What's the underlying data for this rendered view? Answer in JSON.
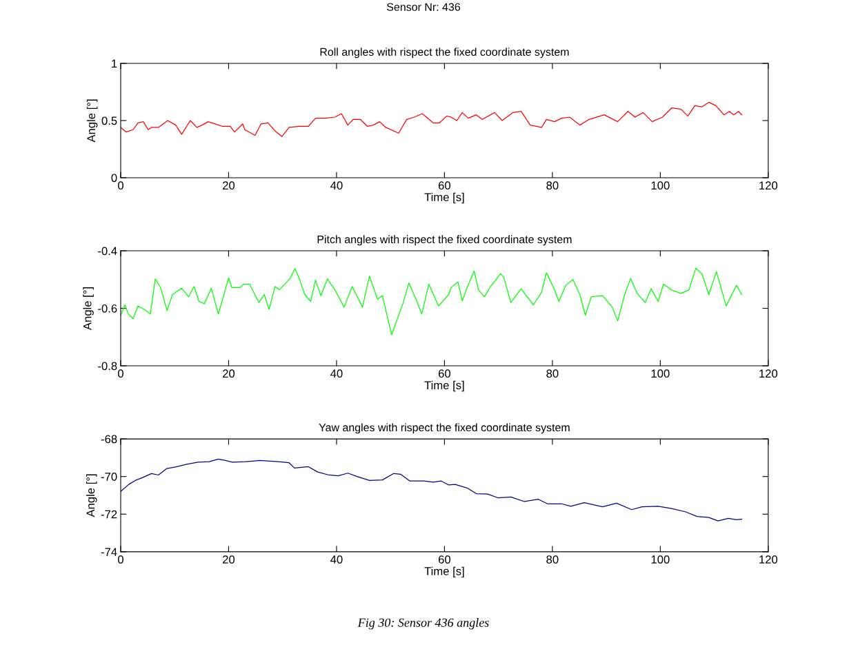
{
  "chart_data": [
    {
      "type": "line",
      "title": "Roll angles with rispect the fixed coordinate system",
      "xlabel": "Time [s]",
      "ylabel": "Angle [°]",
      "annotations": [
        "Sensor Nr: 436"
      ],
      "xlim": [
        0,
        120
      ],
      "xticks": [
        0,
        20,
        40,
        60,
        80,
        100,
        120
      ],
      "ylim": [
        0,
        1
      ],
      "yticks": [
        0,
        0.5,
        1
      ],
      "grid": false,
      "legend": false,
      "marker": "none",
      "line_style": "solid",
      "series": [
        {
          "color": "#ff0000",
          "x": [
            0,
            1.0,
            2.3,
            3.2,
            4.2,
            5.1,
            5.7,
            7.0,
            8.7,
            10.2,
            11.3,
            12.9,
            14.1,
            15.1,
            16.2,
            17.5,
            18.8,
            20.3,
            21.1,
            22.6,
            23.0,
            24.9,
            26.0,
            27.3,
            28.8,
            29.9,
            31.2,
            33.1,
            34.8,
            36.1,
            37.8,
            39.7,
            40.9,
            42.1,
            43.1,
            44.4,
            45.7,
            46.8,
            48.0,
            49.1,
            51.5,
            53.0,
            54.4,
            55.9,
            57.9,
            59.1,
            60.4,
            61.2,
            62.3,
            63.3,
            64.4,
            65.9,
            67.0,
            69.3,
            70.7,
            72.7,
            74.2,
            75.9,
            78.0,
            78.9,
            80.4,
            81.7,
            83.2,
            85.1,
            86.8,
            89.6,
            92.1,
            94.0,
            95.3,
            96.8,
            98.5,
            100.4,
            102.1,
            103.8,
            105.1,
            106.4,
            107.7,
            109.0,
            110.3,
            111.8,
            112.8,
            113.6,
            114.5,
            115.1
          ],
          "values": [
            0.44,
            0.4,
            0.42,
            0.48,
            0.49,
            0.42,
            0.44,
            0.44,
            0.5,
            0.46,
            0.38,
            0.5,
            0.44,
            0.46,
            0.49,
            0.47,
            0.45,
            0.45,
            0.4,
            0.47,
            0.42,
            0.37,
            0.47,
            0.48,
            0.4,
            0.36,
            0.44,
            0.45,
            0.45,
            0.52,
            0.52,
            0.53,
            0.56,
            0.46,
            0.51,
            0.51,
            0.45,
            0.46,
            0.49,
            0.44,
            0.39,
            0.51,
            0.53,
            0.56,
            0.48,
            0.48,
            0.54,
            0.53,
            0.5,
            0.57,
            0.52,
            0.55,
            0.51,
            0.57,
            0.5,
            0.57,
            0.58,
            0.46,
            0.44,
            0.51,
            0.49,
            0.52,
            0.53,
            0.46,
            0.51,
            0.55,
            0.49,
            0.58,
            0.53,
            0.57,
            0.49,
            0.53,
            0.61,
            0.6,
            0.54,
            0.63,
            0.62,
            0.66,
            0.63,
            0.55,
            0.58,
            0.55,
            0.58,
            0.55
          ]
        }
      ]
    },
    {
      "type": "line",
      "title": "Pitch angles with rispect the fixed coordinate system",
      "xlabel": "Time [s]",
      "ylabel": "Angle [°]",
      "xlim": [
        0,
        120
      ],
      "xticks": [
        0,
        20,
        40,
        60,
        80,
        100,
        120
      ],
      "ylim": [
        -0.8,
        -0.4
      ],
      "yticks": [
        -0.8,
        -0.6,
        -0.4
      ],
      "grid": false,
      "legend": false,
      "marker": "none",
      "line_style": "solid",
      "series": [
        {
          "color": "#00ff00",
          "x": [
            0,
            0.8,
            1.4,
            2.3,
            3.2,
            4.4,
            5.5,
            6.4,
            7.4,
            8.6,
            9.6,
            11.3,
            12.6,
            13.6,
            14.5,
            15.5,
            16.8,
            18.1,
            20.0,
            20.6,
            22.1,
            22.8,
            23.9,
            25.6,
            26.6,
            27.5,
            28.6,
            29.4,
            31.4,
            32.3,
            33.1,
            34.1,
            35.2,
            36.1,
            37.1,
            38.3,
            39.7,
            41.4,
            42.9,
            44.8,
            46.1,
            47.6,
            48.5,
            50.2,
            52.3,
            53.4,
            54.9,
            55.8,
            57.1,
            58.9,
            60.8,
            61.2,
            62.5,
            63.3,
            64.2,
            65.5,
            66.3,
            67.4,
            68.4,
            70.4,
            71.0,
            72.3,
            74.2,
            76.5,
            78.0,
            78.9,
            80.4,
            81.2,
            82.5,
            83.8,
            85.1,
            86.1,
            87.2,
            89.3,
            91.1,
            92.1,
            93.4,
            94.5,
            95.7,
            97.2,
            98.3,
            99.6,
            100.6,
            102.1,
            103.8,
            105.3,
            106.6,
            107.7,
            109.0,
            110.4,
            112.2,
            114.1,
            115.1
          ],
          "values": [
            -0.624,
            -0.588,
            -0.62,
            -0.636,
            -0.592,
            -0.604,
            -0.62,
            -0.498,
            -0.528,
            -0.608,
            -0.552,
            -0.53,
            -0.56,
            -0.524,
            -0.576,
            -0.584,
            -0.53,
            -0.62,
            -0.494,
            -0.528,
            -0.528,
            -0.516,
            -0.516,
            -0.58,
            -0.552,
            -0.604,
            -0.524,
            -0.536,
            -0.496,
            -0.462,
            -0.496,
            -0.552,
            -0.576,
            -0.502,
            -0.556,
            -0.498,
            -0.536,
            -0.596,
            -0.524,
            -0.596,
            -0.488,
            -0.568,
            -0.556,
            -0.692,
            -0.584,
            -0.512,
            -0.576,
            -0.62,
            -0.516,
            -0.592,
            -0.552,
            -0.528,
            -0.508,
            -0.574,
            -0.528,
            -0.47,
            -0.536,
            -0.56,
            -0.528,
            -0.48,
            -0.492,
            -0.58,
            -0.532,
            -0.588,
            -0.544,
            -0.476,
            -0.536,
            -0.576,
            -0.52,
            -0.5,
            -0.552,
            -0.624,
            -0.56,
            -0.556,
            -0.596,
            -0.644,
            -0.552,
            -0.496,
            -0.548,
            -0.58,
            -0.532,
            -0.576,
            -0.516,
            -0.536,
            -0.548,
            -0.536,
            -0.46,
            -0.48,
            -0.552,
            -0.472,
            -0.592,
            -0.52,
            -0.552
          ]
        }
      ]
    },
    {
      "type": "line",
      "title": "Yaw angles with rispect the fixed coordinate system",
      "xlabel": "Time [s]",
      "ylabel": "Angle [°]",
      "annotations": [
        "Fig 30: Sensor 436 angles"
      ],
      "xlim": [
        0,
        120
      ],
      "xticks": [
        0,
        20,
        40,
        60,
        80,
        100,
        120
      ],
      "ylim": [
        -74,
        -68
      ],
      "yticks": [
        -74,
        -72,
        -70,
        -68
      ],
      "grid": false,
      "legend": false,
      "marker": "none",
      "line_style": "solid",
      "series": [
        {
          "color": "#00008b",
          "x": [
            0,
            1.5,
            2.7,
            4.0,
            5.7,
            7.0,
            8.5,
            10.4,
            12.1,
            14.3,
            16.4,
            18.1,
            19.4,
            20.7,
            23.2,
            25.8,
            29.2,
            31.2,
            32.2,
            34.8,
            36.5,
            38.6,
            40.3,
            42.1,
            43.8,
            46.1,
            48.5,
            50.6,
            51.9,
            53.6,
            56.2,
            57.9,
            59.4,
            60.8,
            62.0,
            64.2,
            65.9,
            68.0,
            69.9,
            72.3,
            74.8,
            77.4,
            79.1,
            81.7,
            83.4,
            85.9,
            89.3,
            91.9,
            94.7,
            96.6,
            99.6,
            102.1,
            104.7,
            106.8,
            109.0,
            110.7,
            112.6,
            114.1,
            115.1
          ],
          "values": [
            -70.79,
            -70.42,
            -70.21,
            -70.06,
            -69.84,
            -69.92,
            -69.58,
            -69.48,
            -69.36,
            -69.24,
            -69.21,
            -69.07,
            -69.15,
            -69.24,
            -69.21,
            -69.15,
            -69.21,
            -69.27,
            -69.55,
            -69.48,
            -69.76,
            -69.92,
            -69.96,
            -69.82,
            -70.0,
            -70.21,
            -70.18,
            -69.84,
            -69.88,
            -70.24,
            -70.24,
            -70.3,
            -70.24,
            -70.45,
            -70.42,
            -70.61,
            -70.91,
            -70.93,
            -71.13,
            -71.09,
            -71.33,
            -71.21,
            -71.45,
            -71.45,
            -71.58,
            -71.39,
            -71.61,
            -71.42,
            -71.76,
            -71.61,
            -71.58,
            -71.7,
            -71.88,
            -72.12,
            -72.18,
            -72.36,
            -72.22,
            -72.3,
            -72.27
          ]
        }
      ]
    }
  ]
}
